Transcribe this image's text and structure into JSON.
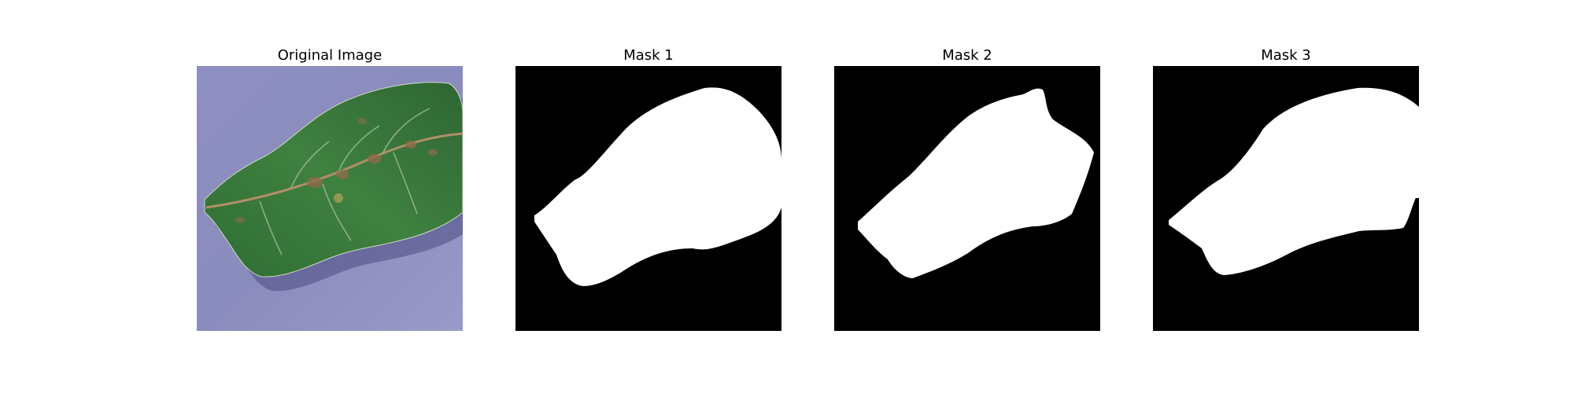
{
  "panels": [
    {
      "title": "Original Image",
      "kind": "photo",
      "subject": "leaf"
    },
    {
      "title": "Mask 1",
      "kind": "mask"
    },
    {
      "title": "Mask 2",
      "kind": "mask"
    },
    {
      "title": "Mask 3",
      "kind": "mask"
    }
  ],
  "colors": {
    "background": "#ffffff",
    "mask_background": "#000000",
    "mask_foreground": "#ffffff",
    "photo_background": "#8e8fc0",
    "leaf_dark": "#2f6f35",
    "leaf_light": "#4b8b47",
    "lesion": "#8a6a4e"
  }
}
